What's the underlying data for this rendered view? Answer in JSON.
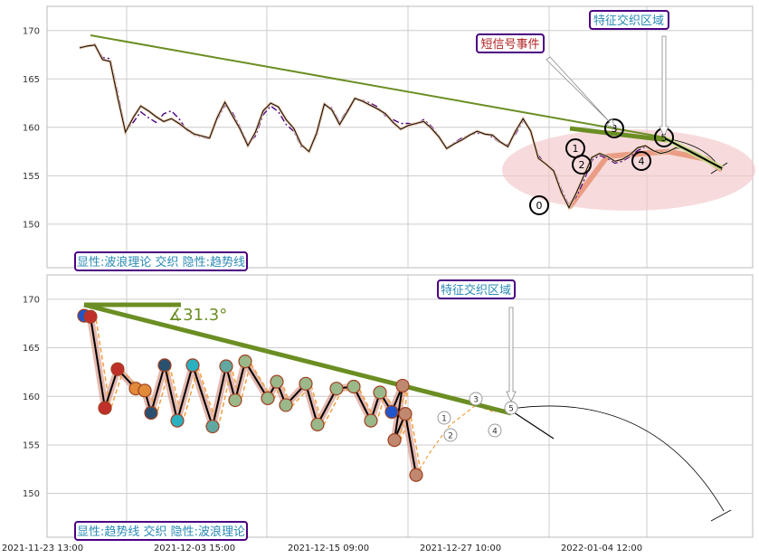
{
  "chart_data": [
    {
      "type": "line",
      "panel": "top",
      "ylim": [
        145.5,
        172.5
      ],
      "yticks": [
        150,
        155,
        160,
        165,
        170
      ],
      "grid": true,
      "series": [
        {
          "values": [
            168.2,
            168.4,
            168.5,
            167.0,
            166.8,
            163.0,
            159.5,
            161.0,
            162.2,
            161.7,
            161.1,
            160.6,
            160.9,
            160.4,
            159.8,
            159.3,
            159.1,
            158.9,
            161.0,
            162.6,
            161.2,
            159.8,
            158.1,
            159.5,
            161.7,
            162.5,
            162.1,
            160.8,
            159.9,
            158.2,
            157.5,
            159.4,
            162.4,
            161.8,
            160.3,
            161.6,
            163.0,
            162.7,
            162.3,
            161.9,
            161.4,
            160.5,
            159.8,
            160.2,
            160.4,
            160.6,
            159.9,
            159.0,
            157.8,
            158.3,
            158.7,
            159.2,
            159.6,
            159.3,
            159.2,
            158.5,
            158.0,
            159.6,
            160.9,
            159.6,
            156.8,
            156.2,
            155.5,
            153.3,
            151.7,
            153.3,
            155.1,
            156.9,
            157.3,
            157.0,
            156.5,
            156.7,
            157.2,
            157.9,
            158.1,
            157.6,
            157.3,
            157.5,
            157.9,
            157.9,
            157.6,
            157.2,
            156.7,
            156.1,
            155.6
          ]
        },
        {
          "values": [
            168.3,
            168.4,
            168.6,
            167.2,
            167.1,
            163.5,
            159.7,
            160.5,
            161.6,
            161.0,
            160.5,
            161.4,
            161.7,
            160.9,
            159.7,
            159.2,
            159.0,
            158.8,
            160.8,
            162.3,
            161.5,
            160.0,
            158.3,
            159.1,
            161.3,
            162.2,
            161.6,
            160.3,
            159.6,
            158.0,
            157.6,
            159.1,
            162.2,
            162.0,
            160.5,
            161.8,
            162.9,
            162.8,
            162.5,
            162.1,
            161.2,
            160.8,
            160.4,
            160.4,
            160.3,
            160.8,
            160.1,
            159.1,
            157.9,
            158.4,
            158.9,
            159.2,
            159.4,
            159.3,
            159.0,
            158.4,
            158.2,
            159.3,
            160.7,
            159.7,
            157.1,
            156.1,
            155.7,
            153.6,
            151.9,
            152.9,
            154.6,
            156.6,
            157.1,
            156.8,
            156.3,
            156.5,
            157.0,
            157.6,
            158.0,
            157.7,
            157.4,
            157.5,
            157.8,
            157.8,
            157.6
          ]
        }
      ],
      "annotations": [
        "短信号事件",
        "特征交织区域"
      ],
      "wave_labels": [
        "0",
        "1",
        "2",
        "3",
        "4",
        "5"
      ],
      "caption": "显性:波浪理论 交织 隐性:趋势线"
    },
    {
      "type": "line",
      "panel": "bottom",
      "ylim": [
        145.5,
        172.5
      ],
      "yticks": [
        150,
        155,
        160,
        165,
        170
      ],
      "grid": true,
      "x_tick_labels": [
        "2021-11-23 13:00",
        "2021-12-03 15:00",
        "2021-12-15 09:00",
        "2021-12-27 10:00",
        "2022-01-04 12:00"
      ],
      "series": [
        {
          "values": [
            168.3,
            168.2,
            158.8,
            162.8,
            160.8,
            160.6,
            158.3,
            163.2,
            157.5,
            163.2,
            156.9,
            163.1,
            159.6,
            163.6,
            159.8,
            161.5,
            159.1,
            161.3,
            157.1,
            160.8,
            161.0,
            157.5,
            160.4,
            158.4,
            161.1,
            155.5,
            158.2,
            151.9,
            154.2,
            157.0,
            159.1,
            158.3
          ]
        }
      ],
      "angle_label": "∡31.3°",
      "annotations": [
        "特征交织区域"
      ],
      "wave_labels": [
        "1",
        "2",
        "3",
        "4",
        "5"
      ],
      "caption": "显性:趋势线 交织 隐性:波浪理论"
    }
  ],
  "colors": {
    "trend": "#6b8e23",
    "price": "#000000",
    "dash": "#4b0082",
    "box_border": "#4b0082",
    "box_text": "#2a8ab5",
    "event_text": "#b22222",
    "ellipse": "#f2c7c9",
    "wave_bold": "#e8967a",
    "dash_orange": "#f0a040"
  }
}
